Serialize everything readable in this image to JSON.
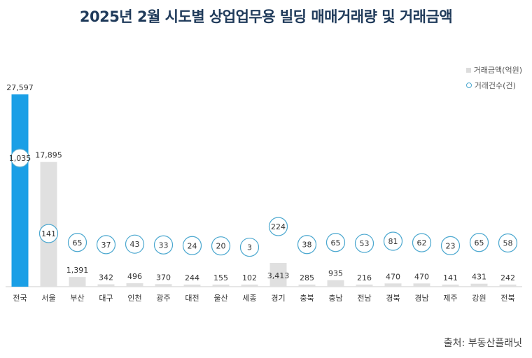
{
  "title": "2025년 2월 시도별 상업업무용 빌딩 매매거래량 및 거래금액",
  "source": "출처: 부동산플래닛",
  "colors": {
    "highlight_bar": "#1a9fe6",
    "bar": "#e0e0e0",
    "circle_stroke": "#4aa7cf"
  },
  "chart_data": {
    "type": "bar",
    "categories": [
      "전국",
      "서울",
      "부산",
      "대구",
      "인천",
      "광주",
      "대전",
      "울산",
      "세종",
      "경기",
      "충북",
      "충남",
      "전남",
      "경북",
      "경남",
      "제주",
      "강원",
      "전북"
    ],
    "series": [
      {
        "name": "거래금액(억원)",
        "values": [
          27597,
          17895,
          1391,
          342,
          496,
          370,
          244,
          155,
          102,
          3413,
          285,
          935,
          216,
          470,
          470,
          141,
          431,
          242
        ]
      },
      {
        "name": "거래건수(건)",
        "values": [
          1035,
          141,
          65,
          37,
          43,
          33,
          24,
          20,
          3,
          224,
          38,
          65,
          53,
          81,
          62,
          23,
          65,
          58
        ]
      }
    ],
    "value_labels": [
      "27,597",
      "17,895",
      "1,391",
      "342",
      "496",
      "370",
      "244",
      "155",
      "102",
      "3,413",
      "285",
      "935",
      "216",
      "470",
      "470",
      "141",
      "431",
      "242"
    ],
    "count_labels": [
      "1,035",
      "141",
      "65",
      "37",
      "43",
      "33",
      "24",
      "20",
      "3",
      "224",
      "38",
      "65",
      "53",
      "81",
      "62",
      "23",
      "65",
      "58"
    ],
    "highlight_index": 0,
    "legend": [
      "거래금액(억원)",
      "거래건수(건)"
    ],
    "legend_position": "top-right",
    "xlabel": "",
    "ylabel": "",
    "ylim": [
      0,
      27597
    ],
    "grid": false
  }
}
